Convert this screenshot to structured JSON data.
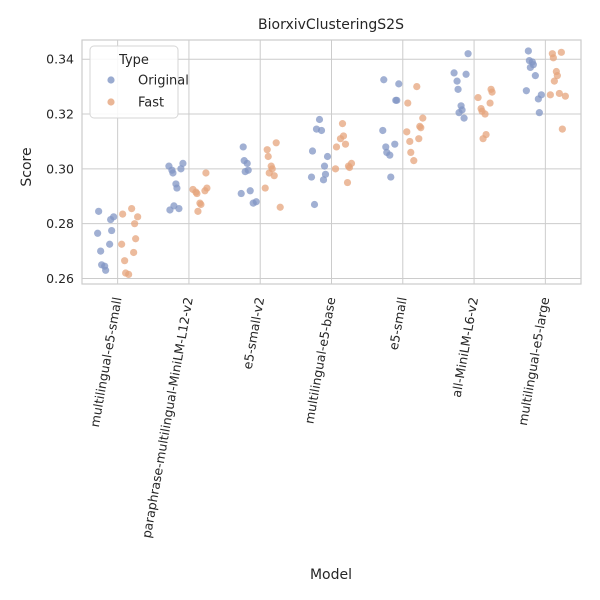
{
  "chart_data": {
    "type": "scatter",
    "title": "BiorxivClusteringS2S",
    "xlabel": "Model",
    "ylabel": "Score",
    "ylim": [
      0.258,
      0.347
    ],
    "yticks": [
      "0.26",
      "0.28",
      "0.30",
      "0.32",
      "0.34"
    ],
    "grid": true,
    "legend": {
      "title": "Type",
      "position": "top-left"
    },
    "categories": [
      "multilingual-e5-small",
      "paraphrase-multilingual-MiniLM-L12-v2",
      "e5-small-v2",
      "multilingual-e5-base",
      "e5-small",
      "all-MiniLM-L6-v2",
      "multilingual-e5-large"
    ],
    "series": [
      {
        "name": "Original",
        "color": "#8196c4",
        "values": [
          [
            0.2845,
            0.2825,
            0.2815,
            0.2775,
            0.2765,
            0.2725,
            0.27,
            0.265,
            0.2645,
            0.263
          ],
          [
            0.302,
            0.301,
            0.3,
            0.2995,
            0.2985,
            0.2945,
            0.293,
            0.2865,
            0.2855,
            0.285
          ],
          [
            0.308,
            0.303,
            0.302,
            0.2995,
            0.299,
            0.292,
            0.291,
            0.288,
            0.2875
          ],
          [
            0.318,
            0.3145,
            0.314,
            0.3065,
            0.3045,
            0.301,
            0.298,
            0.297,
            0.296,
            0.287
          ],
          [
            0.3325,
            0.331,
            0.325,
            0.325,
            0.314,
            0.309,
            0.308,
            0.306,
            0.305,
            0.297
          ],
          [
            0.342,
            0.335,
            0.3345,
            0.332,
            0.329,
            0.323,
            0.3215,
            0.3205,
            0.3185
          ],
          [
            0.343,
            0.3395,
            0.339,
            0.338,
            0.337,
            0.334,
            0.3285,
            0.327,
            0.3255,
            0.3205
          ]
        ]
      },
      {
        "name": "Fast",
        "color": "#e5a47c",
        "values": [
          [
            0.2855,
            0.2835,
            0.2825,
            0.28,
            0.2745,
            0.2725,
            0.2695,
            0.2665,
            0.262,
            0.2615
          ],
          [
            0.2985,
            0.293,
            0.2925,
            0.292,
            0.2915,
            0.291,
            0.2875,
            0.287,
            0.2845
          ],
          [
            0.3095,
            0.307,
            0.3045,
            0.301,
            0.3,
            0.2985,
            0.2975,
            0.293,
            0.286
          ],
          [
            0.3165,
            0.312,
            0.311,
            0.309,
            0.308,
            0.302,
            0.301,
            0.3005,
            0.3,
            0.295
          ],
          [
            0.33,
            0.324,
            0.3185,
            0.3155,
            0.315,
            0.3135,
            0.311,
            0.31,
            0.306,
            0.303
          ],
          [
            0.329,
            0.328,
            0.326,
            0.324,
            0.322,
            0.321,
            0.32,
            0.3125,
            0.311
          ],
          [
            0.3425,
            0.342,
            0.3405,
            0.3355,
            0.334,
            0.332,
            0.3275,
            0.327,
            0.3265,
            0.3145
          ]
        ]
      }
    ]
  }
}
